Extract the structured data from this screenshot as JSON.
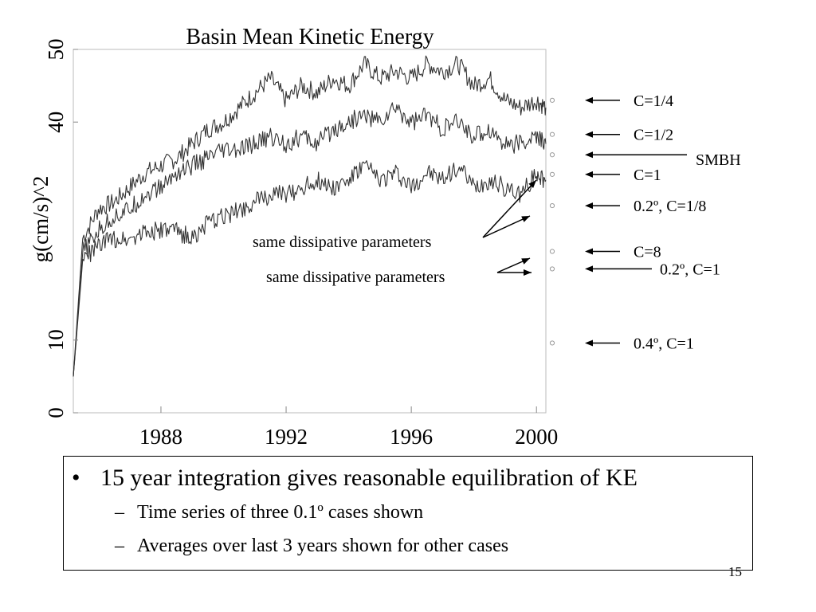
{
  "slide": {
    "number": "15",
    "bullets": {
      "main": "15 year integration gives reasonable equilibration of KE",
      "sub": [
        "Time series of  three 0.1º  cases shown",
        "Averages over last 3 years shown for other cases"
      ],
      "bullet_glyph": "•",
      "dash_glyph": "–"
    }
  },
  "chart_data": {
    "type": "line",
    "title": "Basin Mean Kinetic Energy",
    "xlabel": "",
    "ylabel": "g(cm/s)^2",
    "xlim": [
      1985.2,
      2000.3
    ],
    "ylim": [
      0,
      50
    ],
    "x_ticks": [
      {
        "value": 1988,
        "label": "1988"
      },
      {
        "value": 1992,
        "label": "1992"
      },
      {
        "value": 1996,
        "label": "1996"
      },
      {
        "value": 2000,
        "label": "2000"
      }
    ],
    "y_ticks": [
      {
        "value": 0,
        "label": "0"
      },
      {
        "value": 10,
        "label": "10"
      },
      {
        "value": 40,
        "label": "40"
      },
      {
        "value": 50,
        "label": "50"
      }
    ],
    "grid": false,
    "line_color": "#333333",
    "series": [
      {
        "name": "C=1/4",
        "x": [
          1985.2,
          1985.5,
          1986.0,
          1986.5,
          1987.0,
          1987.5,
          1988.0,
          1988.5,
          1989.0,
          1989.5,
          1990.0,
          1990.5,
          1991.0,
          1991.5,
          1992.0,
          1992.5,
          1993.0,
          1993.5,
          1994.0,
          1994.5,
          1995.0,
          1995.5,
          1996.0,
          1996.5,
          1997.0,
          1997.5,
          1998.0,
          1998.5,
          1999.0,
          1999.5,
          2000.0,
          2000.3
        ],
        "y": [
          5,
          24,
          28,
          29,
          31,
          33,
          34,
          35,
          37,
          39,
          40,
          42,
          44,
          46,
          43,
          45,
          44,
          46,
          45,
          48,
          46,
          47,
          46,
          48,
          47,
          48,
          45,
          46,
          43,
          42,
          43,
          42
        ]
      },
      {
        "name": "C=1/2",
        "x": [
          1985.2,
          1985.5,
          1986.0,
          1986.5,
          1987.0,
          1987.5,
          1988.0,
          1988.5,
          1989.0,
          1989.5,
          1990.0,
          1990.5,
          1991.0,
          1991.5,
          1992.0,
          1992.5,
          1993.0,
          1993.5,
          1994.0,
          1994.5,
          1995.0,
          1995.5,
          1996.0,
          1996.5,
          1997.0,
          1997.5,
          1998.0,
          1998.5,
          1999.0,
          1999.5,
          2000.0,
          2000.3
        ],
        "y": [
          5,
          22,
          25,
          27,
          28,
          30,
          31,
          33,
          34,
          35,
          36,
          36,
          37,
          38,
          37,
          38,
          37,
          39,
          40,
          41,
          40,
          42,
          40,
          41,
          39,
          40,
          38,
          39,
          37,
          37,
          38,
          37
        ]
      },
      {
        "name": "C=1",
        "x": [
          1985.2,
          1985.5,
          1986.0,
          1986.5,
          1987.0,
          1987.5,
          1988.0,
          1988.5,
          1989.0,
          1989.5,
          1990.0,
          1990.5,
          1991.0,
          1991.5,
          1992.0,
          1992.5,
          1993.0,
          1993.5,
          1994.0,
          1994.5,
          1995.0,
          1995.5,
          1996.0,
          1996.5,
          1997.0,
          1997.5,
          1998.0,
          1998.5,
          1999.0,
          1999.5,
          2000.0,
          2000.3
        ],
        "y": [
          5,
          21,
          23,
          24,
          24,
          25,
          25,
          25,
          24,
          26,
          27,
          28,
          29,
          30,
          30,
          31,
          32,
          31,
          32,
          34,
          32,
          33,
          31,
          33,
          32,
          34,
          31,
          32,
          31,
          30,
          33,
          32
        ]
      }
    ],
    "average_markers": [
      {
        "label": "C=1/4",
        "value": 43.0
      },
      {
        "label": "C=1/2",
        "value": 38.3
      },
      {
        "label": "SMBH",
        "value": 35.5
      },
      {
        "label": "C=1",
        "value": 32.8
      },
      {
        "label": "0.2º, C=1/8",
        "value": 28.5
      },
      {
        "label": "C=8",
        "value": 22.2
      },
      {
        "label": "0.2º, C=1",
        "value": 19.8
      },
      {
        "label": "0.4º, C=1",
        "value": 9.6
      }
    ],
    "annotations": [
      {
        "text": "same dissipative parameters",
        "points_to": [
          "C=1",
          "0.2º, C=1/8"
        ]
      },
      {
        "text": "same dissipative parameters",
        "points_to": [
          "C=8",
          "0.2º, C=1"
        ]
      }
    ]
  }
}
